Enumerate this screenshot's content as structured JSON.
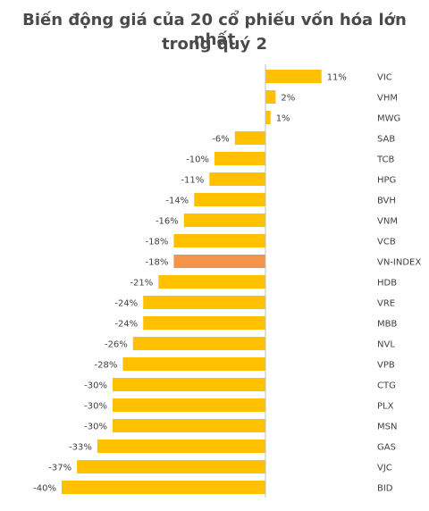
{
  "title_lines": [
    "Biến động giá của 20 cổ phiếu vốn hóa lớn nhất",
    "trong quý 2"
  ],
  "colors": {
    "bar": "#FFC000",
    "highlight": "#F4934A",
    "axis": "#BFBFBF",
    "text": "#404040"
  },
  "chart_data": {
    "type": "bar",
    "orientation": "horizontal",
    "title": "Biến động giá của 20 cổ phiếu vốn hóa lớn nhất trong quý 2",
    "categories": [
      "VIC",
      "VHM",
      "MWG",
      "SAB",
      "TCB",
      "HPG",
      "BVH",
      "VNM",
      "VCB",
      "VN-INDEX",
      "HDB",
      "VRE",
      "MBB",
      "NVL",
      "VPB",
      "CTG",
      "PLX",
      "MSN",
      "GAS",
      "VJC",
      "BID"
    ],
    "values": [
      11,
      2,
      1,
      -6,
      -10,
      -11,
      -14,
      -16,
      -18,
      -18,
      -21,
      -24,
      -24,
      -26,
      -28,
      -30,
      -30,
      -30,
      -33,
      -37,
      -40
    ],
    "value_labels": [
      "11%",
      "2%",
      "1%",
      "-6%",
      "-10%",
      "-11%",
      "-14%",
      "-16%",
      "-18%",
      "-18%",
      "-21%",
      "-24%",
      "-24%",
      "-26%",
      "-28%",
      "-30%",
      "-30%",
      "-30%",
      "-33%",
      "-37%",
      "-40%"
    ],
    "highlight": "VN-INDEX",
    "unit": "%",
    "xlabel": "",
    "ylabel": "",
    "legend": "none",
    "grid": false
  }
}
